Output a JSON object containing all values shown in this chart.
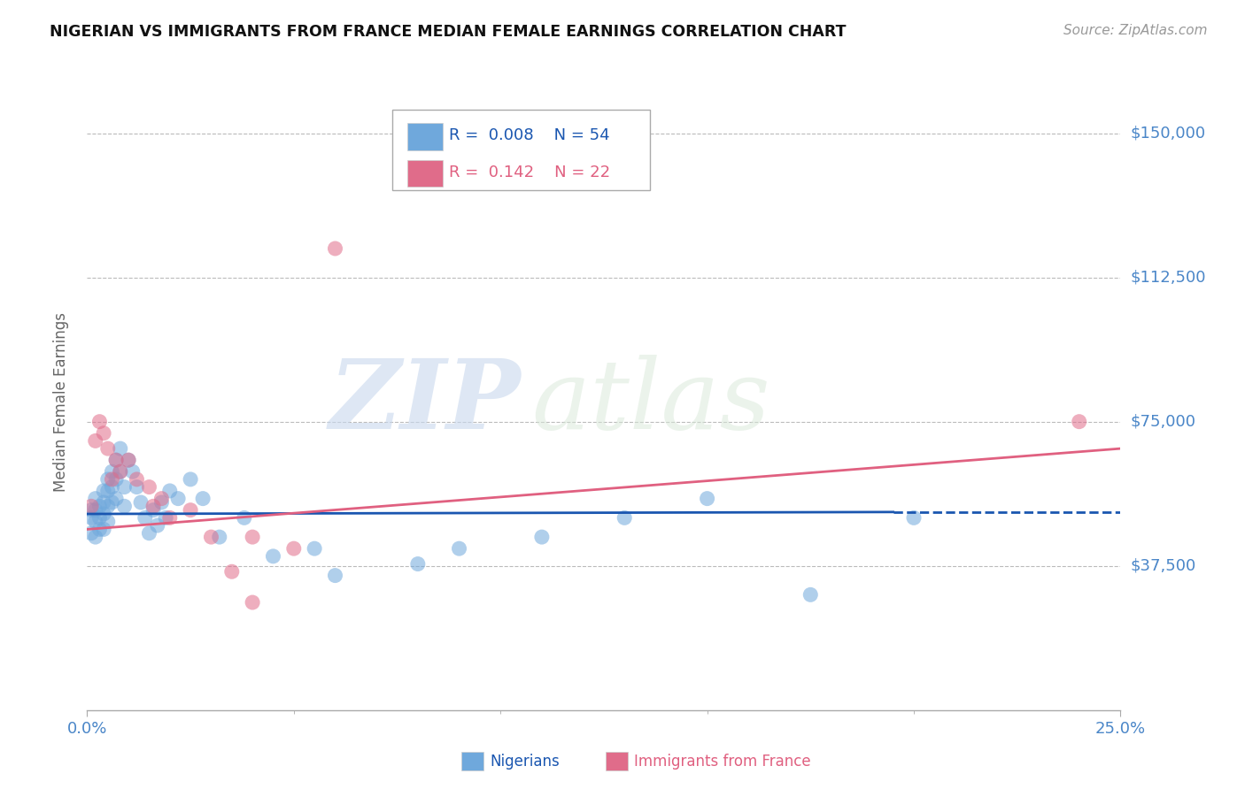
{
  "title": "NIGERIAN VS IMMIGRANTS FROM FRANCE MEDIAN FEMALE EARNINGS CORRELATION CHART",
  "source": "Source: ZipAtlas.com",
  "ylabel": "Median Female Earnings",
  "yticks": [
    0,
    37500,
    75000,
    112500,
    150000
  ],
  "ytick_labels": [
    "",
    "$37,500",
    "$75,000",
    "$112,500",
    "$150,000"
  ],
  "xlim": [
    0.0,
    0.25
  ],
  "ylim": [
    0,
    160000
  ],
  "watermark": "ZIPatlas",
  "nigerian_color": "#6fa8dc",
  "france_color": "#e06c8a",
  "nigerian_line_color": "#1a56b0",
  "france_line_color": "#e06080",
  "nigeria_x": [
    0.001,
    0.001,
    0.001,
    0.002,
    0.002,
    0.002,
    0.002,
    0.003,
    0.003,
    0.003,
    0.004,
    0.004,
    0.004,
    0.004,
    0.005,
    0.005,
    0.005,
    0.005,
    0.006,
    0.006,
    0.006,
    0.007,
    0.007,
    0.007,
    0.008,
    0.008,
    0.009,
    0.009,
    0.01,
    0.011,
    0.012,
    0.013,
    0.014,
    0.015,
    0.016,
    0.017,
    0.018,
    0.019,
    0.02,
    0.022,
    0.025,
    0.028,
    0.032,
    0.038,
    0.045,
    0.055,
    0.06,
    0.08,
    0.09,
    0.11,
    0.13,
    0.15,
    0.175,
    0.2
  ],
  "nigeria_y": [
    52000,
    50000,
    46000,
    55000,
    52000,
    49000,
    45000,
    53000,
    50000,
    47000,
    57000,
    54000,
    51000,
    47000,
    60000,
    57000,
    53000,
    49000,
    62000,
    58000,
    54000,
    65000,
    60000,
    55000,
    68000,
    62000,
    58000,
    53000,
    65000,
    62000,
    58000,
    54000,
    50000,
    46000,
    52000,
    48000,
    54000,
    50000,
    57000,
    55000,
    60000,
    55000,
    45000,
    50000,
    40000,
    42000,
    35000,
    38000,
    42000,
    45000,
    50000,
    55000,
    30000,
    50000
  ],
  "france_x": [
    0.001,
    0.002,
    0.003,
    0.004,
    0.005,
    0.006,
    0.007,
    0.008,
    0.01,
    0.012,
    0.015,
    0.016,
    0.018,
    0.02,
    0.025,
    0.03,
    0.035,
    0.04,
    0.04,
    0.05,
    0.06,
    0.24
  ],
  "france_y": [
    53000,
    70000,
    75000,
    72000,
    68000,
    60000,
    65000,
    62000,
    65000,
    60000,
    58000,
    53000,
    55000,
    50000,
    52000,
    45000,
    36000,
    28000,
    45000,
    42000,
    120000,
    75000
  ],
  "nigeria_trend_x": [
    0.0,
    0.195
  ],
  "nigeria_trend_y": [
    51000,
    51500
  ],
  "france_trend_x": [
    0.0,
    0.25
  ],
  "france_trend_y": [
    47000,
    68000
  ],
  "background_color": "#ffffff",
  "grid_color": "#bbbbbb",
  "title_color": "#111111",
  "tick_color": "#4a86c8",
  "legend_items": [
    {
      "r": "0.008",
      "n": "54",
      "color": "#6fa8dc",
      "text_color": "#1a56b0"
    },
    {
      "r": "0.142",
      "n": "22",
      "color": "#e06c8a",
      "text_color": "#e06080"
    }
  ],
  "bottom_legend": [
    {
      "label": "Nigerians",
      "color": "#6fa8dc",
      "text_color": "#1a56b0"
    },
    {
      "label": "Immigrants from France",
      "color": "#e06c8a",
      "text_color": "#e06080"
    }
  ]
}
